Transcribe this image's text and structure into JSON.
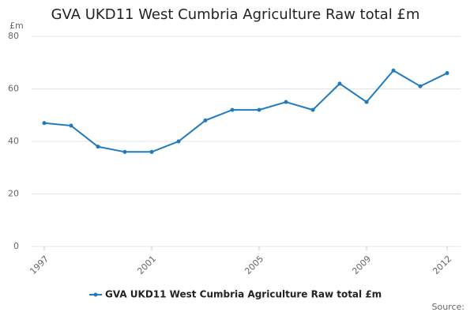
{
  "chart_data": {
    "type": "line",
    "title": "GVA UKD11 West Cumbria Agriculture Raw total £m",
    "y_label": "£m",
    "source": "Source:",
    "x": [
      1997,
      1998,
      1999,
      2000,
      2001,
      2002,
      2003,
      2004,
      2005,
      2006,
      2007,
      2008,
      2009,
      2010,
      2011,
      2012
    ],
    "series": [
      {
        "name": "GVA UKD11 West Cumbria Agriculture Raw total £m",
        "color": "#1f7bbf",
        "values": [
          47,
          46,
          38,
          36,
          36,
          40,
          48,
          52,
          52,
          55,
          52,
          62,
          55,
          67,
          61,
          66
        ]
      }
    ],
    "xlim": [
      1997,
      2012
    ],
    "xticks": [
      1997,
      2001,
      2005,
      2009,
      2012
    ],
    "ylim": [
      0,
      80
    ],
    "yticks": [
      0,
      20,
      40,
      60,
      80
    ],
    "grid": true
  }
}
